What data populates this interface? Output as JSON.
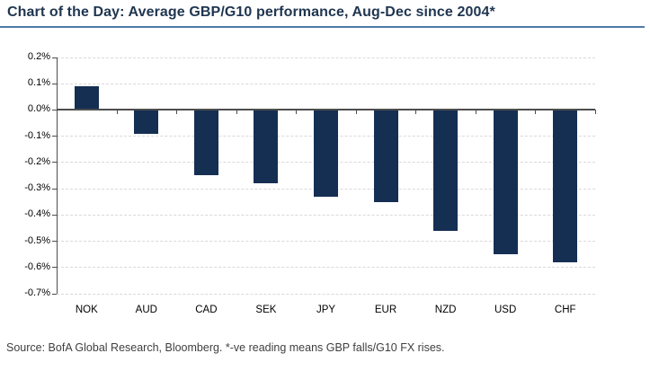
{
  "header": {
    "title": "Chart of the Day: Average GBP/G10 performance, Aug-Dec since 2004*"
  },
  "footer": {
    "source": "Source: BofA Global Research, Bloomberg. *-ve reading means GBP falls/G10 FX rises."
  },
  "colors": {
    "background": "#FFFFFF",
    "bar": "#152F53",
    "title_text": "#1F3550",
    "title_rule": "#4D7AA9",
    "axis_line": "#4D4D4D",
    "gridline": "#D9D9D9",
    "tick_text": "#000000",
    "source_text": "#3F3F3F"
  },
  "chart_data": {
    "type": "bar",
    "title": "Average GBP/G10 performance, Aug-Dec since 2004",
    "categories": [
      "NOK",
      "AUD",
      "CAD",
      "SEK",
      "JPY",
      "EUR",
      "NZD",
      "USD",
      "CHF"
    ],
    "values": [
      0.09,
      -0.09,
      -0.25,
      -0.28,
      -0.33,
      -0.35,
      -0.46,
      -0.55,
      -0.58
    ],
    "unit": "%",
    "xlabel": "",
    "ylabel": "",
    "ylim": [
      -0.7,
      0.2
    ],
    "ytick_step": 0.1,
    "ytick_labels": [
      "0.2%",
      "0.1%",
      "0.0%",
      "-0.1%",
      "-0.2%",
      "-0.3%",
      "-0.4%",
      "-0.5%",
      "-0.6%",
      "-0.7%"
    ],
    "grid": "horizontal-dashed",
    "legend": "none",
    "bar_color": "#152F53"
  }
}
